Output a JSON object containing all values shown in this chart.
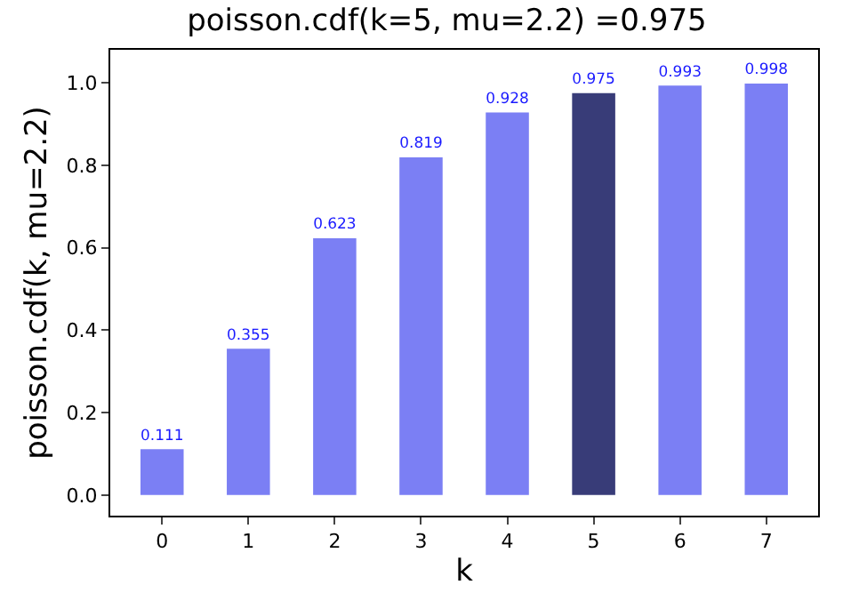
{
  "chart_data": {
    "type": "bar",
    "title": "poisson.cdf(k=5, mu=2.2) =0.975",
    "xlabel": "k",
    "ylabel": "poisson.cdf(k, mu=2.2)",
    "categories": [
      "0",
      "1",
      "2",
      "3",
      "4",
      "5",
      "6",
      "7"
    ],
    "values": [
      0.111,
      0.355,
      0.623,
      0.819,
      0.928,
      0.975,
      0.993,
      0.998
    ],
    "colors": [
      "#7b7ff4",
      "#7b7ff4",
      "#7b7ff4",
      "#7b7ff4",
      "#7b7ff4",
      "#383c78",
      "#7b7ff4",
      "#7b7ff4"
    ],
    "data_labels": true,
    "ylim": [
      -0.05,
      1.08
    ],
    "yticks": [
      {
        "value": 0,
        "label": "0.0"
      },
      {
        "value": 0.2,
        "label": "0.2"
      },
      {
        "value": 0.4,
        "label": "0.4"
      },
      {
        "value": 0.6,
        "label": "0.6"
      },
      {
        "value": 0.8,
        "label": "0.8"
      },
      {
        "value": 1.0,
        "label": "1.0"
      }
    ],
    "legend": false
  }
}
